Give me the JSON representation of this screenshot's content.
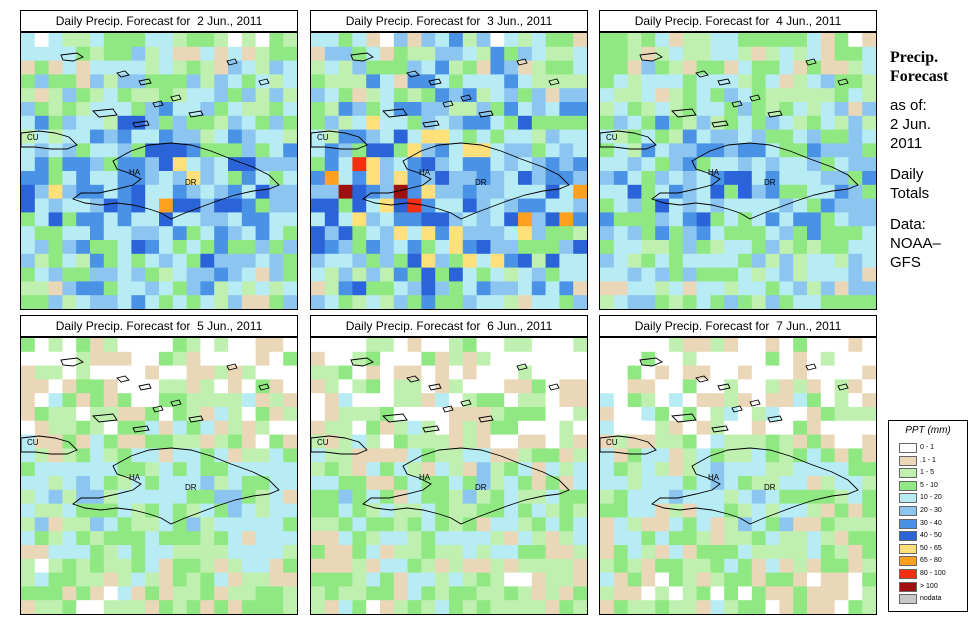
{
  "panels": [
    {
      "title": "Daily Precip. Forecast for  2 Jun., 2011",
      "seed": 11,
      "dry": 0.0,
      "wet": 1.0
    },
    {
      "title": "Daily Precip. Forecast for  3 Jun., 2011",
      "seed": 23,
      "dry": 0.05,
      "wet": 1.15
    },
    {
      "title": "Daily Precip. Forecast for  4 Jun., 2011",
      "seed": 37,
      "dry": 0.0,
      "wet": 0.9
    },
    {
      "title": "Daily Precip. Forecast for  5 Jun., 2011",
      "seed": 41,
      "dry": 0.35,
      "wet": 0.75
    },
    {
      "title": "Daily Precip. Forecast for  6 Jun., 2011",
      "seed": 53,
      "dry": 0.35,
      "wet": 0.7
    },
    {
      "title": "Daily Precip. Forecast for  7 Jun., 2011",
      "seed": 67,
      "dry": 0.4,
      "wet": 0.7
    }
  ],
  "map_labels": {
    "cu": "CU",
    "ha": "HA",
    "dr": "DR"
  },
  "side": {
    "title_line1": "Precip.",
    "title_line2": "Forecast",
    "asof": "as of:",
    "date1": "2 Jun.",
    "date2": "2011",
    "daily1": "Daily",
    "daily2": "Totals",
    "data1": "Data:",
    "data2": "NOAA–",
    "data3": "GFS"
  },
  "legend": {
    "title": "PPT (mm)",
    "items": [
      {
        "label": "0 - 1",
        "color": "#ffffff"
      },
      {
        "label": ".1 - 1",
        "color": "#ead7b8"
      },
      {
        "label": "1 - 5",
        "color": "#bff0b0"
      },
      {
        "label": "5 - 10",
        "color": "#8fe882"
      },
      {
        "label": "10 - 20",
        "color": "#b8ecf5"
      },
      {
        "label": "20 - 30",
        "color": "#8cc6f0"
      },
      {
        "label": "30 - 40",
        "color": "#4a92e6"
      },
      {
        "label": "40 - 50",
        "color": "#2a64d8"
      },
      {
        "label": "50 - 65",
        "color": "#ffe07a"
      },
      {
        "label": "65 - 80",
        "color": "#ffa020"
      },
      {
        "label": "80 - 100",
        "color": "#f03010"
      },
      {
        "label": "> 100",
        "color": "#a01010"
      },
      {
        "label": "nodata",
        "color": "#c8c8c8"
      }
    ]
  }
}
